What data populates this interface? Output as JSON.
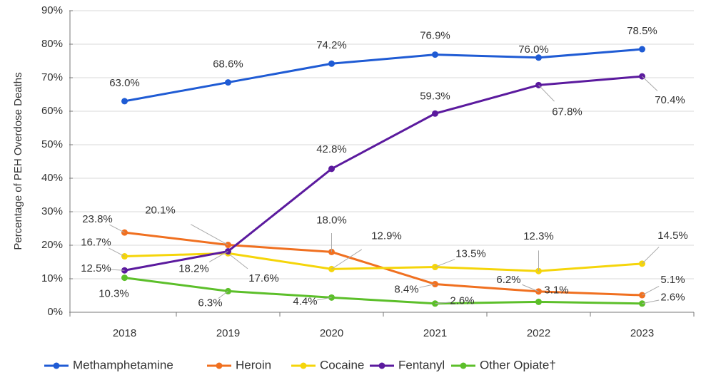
{
  "chart_data": {
    "type": "line",
    "y_label": "Percentage of PEH Overdose Deaths",
    "categories": [
      "2018",
      "2019",
      "2020",
      "2021",
      "2022",
      "2023"
    ],
    "series": [
      {
        "name": "Methamphetamine",
        "color": "#1f5bd4",
        "values": [
          63.0,
          68.6,
          74.2,
          76.9,
          76.0,
          78.5
        ],
        "value_labels": [
          "63.0%",
          "68.6%",
          "74.2%",
          "76.9%",
          "76.0%",
          "78.5%"
        ]
      },
      {
        "name": "Heroin",
        "color": "#f07020",
        "values": [
          23.8,
          20.1,
          18.0,
          8.4,
          6.2,
          5.1
        ],
        "value_labels": [
          "23.8%",
          "20.1%",
          "18.0%",
          "8.4%",
          "6.2%",
          "5.1%"
        ]
      },
      {
        "name": "Cocaine",
        "color": "#f5d50a",
        "values": [
          16.7,
          17.6,
          12.9,
          13.5,
          12.3,
          14.5
        ],
        "value_labels": [
          "16.7%",
          "17.6%",
          "12.9%",
          "13.5%",
          "12.3%",
          "14.5%"
        ]
      },
      {
        "name": "Fentanyl",
        "color": "#5b1a9e",
        "values": [
          12.5,
          18.2,
          42.8,
          59.3,
          67.8,
          70.4
        ],
        "value_labels": [
          "12.5%",
          "18.2%",
          "42.8%",
          "59.3%",
          "67.8%",
          "70.4%"
        ]
      },
      {
        "name": "Other Opiate†",
        "color": "#5cbf2a",
        "values": [
          10.3,
          6.3,
          4.4,
          2.6,
          3.1,
          2.6
        ],
        "value_labels": [
          "10.3%",
          "6.3%",
          "4.4%",
          "2.6%",
          "3.1%",
          "2.6%"
        ]
      }
    ],
    "ylim": [
      0,
      90
    ],
    "yticks": [
      {
        "value": 0,
        "label": "0%"
      },
      {
        "value": 10,
        "label": "10%"
      },
      {
        "value": 20,
        "label": "20%"
      },
      {
        "value": 30,
        "label": "30%"
      },
      {
        "value": 40,
        "label": "40%"
      },
      {
        "value": 50,
        "label": "50%"
      },
      {
        "value": 60,
        "label": "60%"
      },
      {
        "value": 70,
        "label": "70%"
      },
      {
        "value": 80,
        "label": "80%"
      },
      {
        "value": 90,
        "label": "90%"
      }
    ],
    "grid": true,
    "legend": "bottom"
  }
}
